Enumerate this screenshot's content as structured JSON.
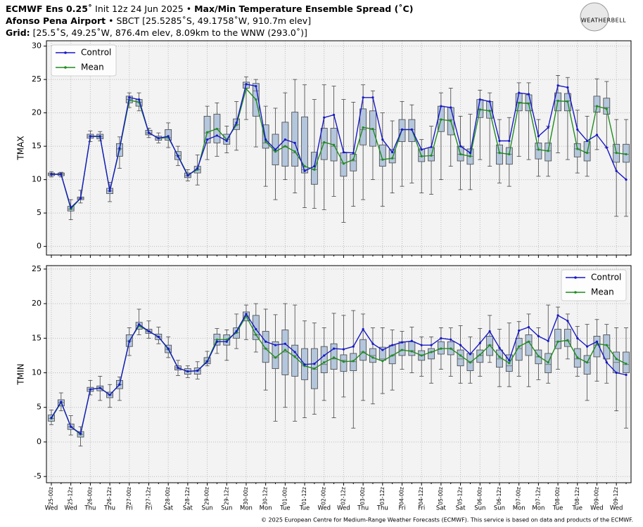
{
  "header": {
    "line1": [
      "ECMWF Ens 0.25˚",
      "Init 12z 24 Jun 2025 •",
      "Max/Min Temperature Ensemble Spread (˚C)"
    ],
    "line2": [
      "Afonso Pena Airport",
      "• SBCT [25.5285˚S, 49.1758˚W, 910.7m elev]"
    ],
    "line3": [
      "Grid:",
      "[25.5˚S, 49.25˚W, 876.4m elev, 8.09km to the WNW (293.0˚)]"
    ],
    "logo": "WEATHERBELL",
    "footer": "© 2025 European Centre for Medium-Range Weather Forecasts (ECMWF). This service is based on data and products of the ECMWF."
  },
  "chart_data": [
    {
      "type": "box",
      "ylabel": "TMAX",
      "ylim": [
        -1.3,
        30.8
      ],
      "yticks": [
        0,
        5,
        10,
        15,
        20,
        25,
        30
      ],
      "grid": true,
      "legend": "upper left",
      "box_color": "#b4c6dc",
      "series": [
        {
          "name": "Control",
          "color": "#1818c8",
          "values": [
            10.8,
            10.8,
            5.8,
            7.2,
            16.5,
            16.5,
            8.3,
            14.7,
            22.3,
            22.0,
            17.0,
            16.2,
            16.5,
            13.5,
            10.6,
            11.7,
            16.0,
            16.6,
            15.8,
            18.5,
            24.3,
            24.0,
            16.0,
            14.5,
            16.0,
            15.5,
            11.3,
            12.0,
            19.3,
            19.7,
            14.1,
            14.0,
            22.3,
            22.3,
            16.0,
            14.1,
            17.5,
            17.5,
            14.5,
            14.9,
            21.0,
            20.8,
            15.0,
            14.0,
            22.0,
            21.7,
            15.8,
            15.8,
            23.0,
            22.8,
            16.5,
            17.8,
            24.1,
            23.8,
            17.5,
            15.8,
            16.7,
            14.8,
            11.3,
            10.0
          ]
        },
        {
          "name": "Mean",
          "color": "#1f8c1f",
          "values": [
            10.8,
            10.8,
            5.6,
            7.2,
            16.5,
            16.4,
            8.3,
            14.5,
            21.9,
            21.6,
            17.0,
            16.2,
            16.3,
            13.6,
            10.7,
            11.5,
            17.1,
            17.6,
            16.0,
            18.2,
            23.6,
            22.0,
            15.7,
            14.2,
            15.0,
            14.2,
            12.0,
            11.5,
            15.6,
            15.2,
            12.4,
            13.0,
            17.8,
            17.6,
            13.0,
            13.2,
            17.5,
            17.5,
            13.5,
            13.6,
            19.0,
            18.8,
            13.8,
            13.5,
            20.5,
            20.3,
            14.0,
            13.8,
            21.5,
            21.4,
            14.5,
            14.3,
            21.8,
            21.7,
            14.6,
            14.0,
            21.0,
            20.6,
            14.0,
            13.8
          ]
        }
      ],
      "boxes": [
        [
          10.4,
          10.6,
          10.8,
          11.0,
          11.2
        ],
        [
          10.4,
          10.6,
          10.8,
          11.0,
          11.1
        ],
        [
          4.0,
          5.3,
          5.6,
          6.0,
          7.0
        ],
        [
          6.5,
          7.0,
          7.2,
          7.4,
          8.4
        ],
        [
          15.7,
          16.2,
          16.5,
          16.8,
          17.3
        ],
        [
          15.8,
          16.1,
          16.4,
          16.8,
          17.2
        ],
        [
          6.7,
          7.9,
          8.3,
          8.7,
          9.6
        ],
        [
          11.7,
          13.5,
          14.6,
          15.4,
          16.4
        ],
        [
          20.8,
          21.5,
          22.0,
          22.5,
          23.0
        ],
        [
          20.3,
          21.0,
          21.6,
          22.0,
          23.0
        ],
        [
          16.3,
          16.7,
          17.0,
          17.4,
          17.7
        ],
        [
          15.5,
          15.9,
          16.2,
          16.5,
          17.0
        ],
        [
          14.8,
          15.9,
          16.3,
          17.5,
          18.5
        ],
        [
          12.1,
          13.0,
          13.6,
          14.2,
          15.0
        ],
        [
          9.8,
          10.3,
          10.6,
          11.0,
          11.5
        ],
        [
          9.2,
          11.0,
          11.5,
          12.0,
          13.7
        ],
        [
          13.0,
          15.5,
          17.0,
          19.5,
          21.0
        ],
        [
          13.5,
          15.5,
          17.6,
          19.8,
          21.5
        ],
        [
          14.0,
          15.3,
          16.0,
          16.8,
          18.0
        ],
        [
          14.4,
          17.5,
          18.2,
          19.1,
          21.7
        ],
        [
          19.0,
          23.7,
          24.2,
          24.6,
          25.4
        ],
        [
          14.9,
          19.5,
          23.3,
          24.4,
          25.0
        ],
        [
          9.0,
          14.7,
          15.5,
          18.2,
          21.0
        ],
        [
          7.0,
          12.2,
          14.3,
          16.8,
          20.7
        ],
        [
          10.0,
          12.0,
          15.0,
          18.6,
          23.0
        ],
        [
          8.0,
          12.0,
          14.0,
          20.1,
          25.0
        ],
        [
          5.8,
          11.0,
          11.5,
          19.4,
          24.2
        ],
        [
          5.7,
          9.3,
          11.5,
          14.1,
          22.0
        ],
        [
          5.5,
          13.0,
          15.5,
          17.7,
          24.2
        ],
        [
          7.5,
          12.8,
          15.0,
          17.7,
          24.0
        ],
        [
          3.6,
          10.5,
          12.5,
          14.0,
          22.0
        ],
        [
          6.0,
          11.3,
          12.8,
          13.8,
          21.6
        ],
        [
          7.0,
          15.2,
          17.5,
          20.6,
          24.2
        ],
        [
          10.0,
          15.0,
          17.5,
          20.3,
          23.3
        ],
        [
          6.0,
          12.0,
          13.0,
          15.2,
          20.0
        ],
        [
          8.0,
          12.5,
          13.2,
          14.5,
          18.8
        ],
        [
          9.0,
          15.7,
          17.5,
          19.0,
          21.7
        ],
        [
          9.5,
          15.7,
          17.5,
          19.0,
          21.2
        ],
        [
          8.0,
          12.7,
          13.5,
          14.6,
          16.0
        ],
        [
          7.8,
          12.8,
          13.6,
          14.8,
          18.0
        ],
        [
          10.0,
          17.2,
          19.0,
          21.0,
          23.0
        ],
        [
          12.0,
          16.7,
          19.0,
          20.8,
          23.7
        ],
        [
          8.5,
          12.8,
          13.8,
          15.0,
          19.5
        ],
        [
          8.5,
          12.3,
          13.5,
          14.6,
          19.8
        ],
        [
          13.0,
          19.3,
          20.5,
          22.0,
          23.4
        ],
        [
          12.0,
          19.2,
          20.3,
          21.7,
          23.0
        ],
        [
          9.5,
          12.3,
          14.0,
          15.2,
          19.0
        ],
        [
          9.0,
          12.3,
          13.8,
          14.8,
          19.3
        ],
        [
          13.5,
          20.3,
          21.6,
          22.9,
          24.5
        ],
        [
          13.0,
          20.3,
          21.5,
          22.7,
          24.5
        ],
        [
          10.5,
          13.1,
          14.5,
          15.5,
          19.0
        ],
        [
          10.5,
          12.8,
          14.3,
          15.5,
          18.0
        ],
        [
          14.0,
          20.3,
          21.8,
          23.0,
          25.6
        ],
        [
          13.0,
          20.3,
          21.8,
          22.9,
          25.3
        ],
        [
          11.0,
          13.4,
          14.6,
          15.4,
          20.4
        ],
        [
          10.5,
          12.8,
          14.0,
          15.7,
          19.5
        ],
        [
          14.5,
          20.1,
          21.0,
          22.5,
          25.1
        ],
        [
          14.8,
          19.8,
          20.8,
          22.2,
          24.7
        ],
        [
          4.5,
          12.6,
          14.0,
          15.3,
          19.0
        ],
        [
          4.5,
          12.6,
          13.8,
          15.3,
          19.0
        ]
      ]
    },
    {
      "type": "box",
      "ylabel": "TMIN",
      "ylim": [
        -5.9,
        25.5
      ],
      "yticks": [
        -5,
        0,
        5,
        10,
        15,
        20,
        25
      ],
      "grid": true,
      "legend": "upper right",
      "box_color": "#b4c6dc",
      "categories": [
        "25-00z",
        null,
        "25-12z",
        null,
        "26-00z",
        null,
        "26-12z",
        null,
        "27-00z",
        null,
        "27-12z",
        null,
        "28-00z",
        null,
        "28-12z",
        null,
        "29-00z",
        null,
        "29-12z",
        null,
        "30-00z",
        null,
        "30-12z",
        null,
        "01-00z",
        null,
        "01-12z",
        null,
        "02-00z",
        null,
        "02-12z",
        null,
        "03-00z",
        null,
        "03-12z",
        null,
        "04-00z",
        null,
        "04-12z",
        null,
        "05-00z",
        null,
        "05-12z",
        null,
        "06-00z",
        null,
        "06-12z",
        null,
        "07-00z",
        null,
        "07-12z",
        null,
        "08-00z",
        null,
        "08-12z",
        null,
        "09-00z",
        null,
        "09-12z",
        null
      ],
      "day_labels": [
        "Wed",
        null,
        "Wed",
        null,
        "Thu",
        null,
        "Thu",
        null,
        "Fri",
        null,
        "Fri",
        null,
        "Sat",
        null,
        "Sat",
        null,
        "Sun",
        null,
        "Sun",
        null,
        "Mon",
        null,
        "Mon",
        null,
        "Tue",
        null,
        "Tue",
        null,
        "Wed",
        null,
        "Wed",
        null,
        "Thu",
        null,
        "Thu",
        null,
        "Fri",
        null,
        "Fri",
        null,
        "Sat",
        null,
        "Sat",
        null,
        "Sun",
        null,
        "Sun",
        null,
        "Mon",
        null,
        "Mon",
        null,
        "Tue",
        null,
        "Tue",
        null,
        "Wed",
        null,
        "Wed",
        null
      ],
      "series": [
        {
          "name": "Control",
          "color": "#1818c8",
          "values": [
            3.5,
            5.8,
            2.2,
            1.2,
            7.6,
            7.8,
            6.8,
            8.3,
            14.5,
            17.0,
            16.0,
            15.2,
            13.5,
            10.7,
            10.2,
            10.3,
            11.6,
            14.5,
            14.5,
            16.0,
            18.5,
            16.3,
            14.5,
            14.0,
            14.2,
            13.0,
            11.2,
            11.3,
            12.5,
            13.5,
            13.4,
            13.8,
            16.3,
            14.2,
            13.3,
            14.0,
            14.4,
            14.6,
            14.0,
            14.0,
            15.0,
            14.8,
            14.0,
            12.7,
            14.3,
            16.0,
            13.6,
            11.8,
            16.1,
            16.6,
            15.3,
            14.6,
            18.3,
            17.5,
            15.0,
            13.8,
            14.5,
            11.5,
            10.0,
            9.7
          ]
        },
        {
          "name": "Mean",
          "color": "#1f8c1f",
          "values": [
            3.4,
            5.7,
            2.2,
            1.1,
            7.6,
            7.8,
            6.8,
            8.3,
            14.6,
            16.8,
            16.0,
            15.2,
            13.4,
            10.7,
            10.2,
            10.3,
            11.7,
            14.8,
            14.8,
            15.8,
            18.2,
            15.5,
            13.5,
            12.2,
            13.3,
            12.3,
            11.0,
            10.6,
            11.5,
            12.2,
            11.6,
            11.7,
            13.0,
            12.2,
            11.7,
            12.5,
            13.3,
            13.1,
            12.5,
            13.0,
            13.5,
            13.5,
            12.5,
            11.5,
            12.6,
            14.0,
            12.3,
            11.4,
            13.8,
            14.5,
            12.4,
            11.5,
            14.5,
            14.7,
            12.2,
            11.5,
            14.2,
            14.0,
            12.0,
            11.3
          ]
        }
      ],
      "boxes": [
        [
          2.5,
          3.0,
          3.4,
          3.9,
          4.6
        ],
        [
          4.5,
          5.2,
          5.7,
          6.1,
          7.1
        ],
        [
          1.0,
          1.8,
          2.2,
          2.6,
          3.8
        ],
        [
          -0.6,
          0.7,
          1.1,
          1.5,
          2.2
        ],
        [
          6.8,
          7.3,
          7.6,
          7.9,
          8.9
        ],
        [
          6.0,
          7.4,
          7.8,
          8.1,
          9.5
        ],
        [
          5.0,
          6.4,
          6.8,
          7.2,
          8.3
        ],
        [
          6.0,
          7.7,
          8.3,
          8.9,
          9.4
        ],
        [
          12.5,
          13.8,
          14.6,
          15.5,
          16.5
        ],
        [
          15.5,
          16.3,
          16.8,
          17.3,
          19.2
        ],
        [
          15.0,
          15.7,
          16.0,
          16.3,
          17.5
        ],
        [
          14.2,
          14.8,
          15.2,
          15.6,
          16.6
        ],
        [
          12.2,
          12.9,
          13.4,
          14.0,
          15.2
        ],
        [
          9.6,
          10.4,
          10.7,
          11.0,
          11.8
        ],
        [
          9.3,
          9.8,
          10.2,
          10.6,
          11.0
        ],
        [
          9.1,
          9.8,
          10.3,
          10.7,
          11.6
        ],
        [
          11.0,
          11.3,
          11.7,
          12.2,
          13.1
        ],
        [
          12.8,
          14.0,
          14.8,
          15.6,
          16.4
        ],
        [
          11.8,
          14.0,
          14.8,
          15.5,
          16.2
        ],
        [
          13.5,
          15.0,
          15.8,
          16.5,
          18.5
        ],
        [
          14.8,
          17.5,
          18.2,
          18.8,
          19.8
        ],
        [
          13.0,
          14.8,
          15.5,
          18.3,
          20.0
        ],
        [
          7.5,
          11.5,
          13.5,
          16.0,
          19.2
        ],
        [
          3.0,
          10.6,
          12.2,
          14.5,
          18.4
        ],
        [
          5.0,
          9.7,
          13.0,
          16.2,
          20.0
        ],
        [
          3.0,
          9.5,
          12.5,
          14.0,
          19.8
        ],
        [
          3.5,
          9.0,
          11.0,
          13.5,
          17.5
        ],
        [
          4.0,
          7.7,
          10.5,
          13.5,
          17.2
        ],
        [
          6.0,
          10.0,
          11.2,
          13.8,
          16.5
        ],
        [
          3.5,
          10.5,
          12.0,
          14.2,
          18.6
        ],
        [
          6.5,
          10.2,
          11.8,
          12.6,
          18.3
        ],
        [
          2.0,
          10.3,
          11.6,
          12.8,
          19.0
        ],
        [
          6.0,
          11.8,
          13.0,
          14.8,
          18.5
        ],
        [
          5.5,
          11.5,
          12.5,
          13.5,
          16.5
        ],
        [
          7.0,
          11.8,
          12.0,
          13.7,
          16.5
        ],
        [
          7.5,
          11.3,
          12.5,
          14.0,
          16.2
        ],
        [
          10.5,
          12.5,
          13.3,
          14.5,
          16.0
        ],
        [
          10.0,
          12.5,
          13.2,
          14.5,
          16.6
        ],
        [
          9.5,
          11.8,
          12.5,
          13.2,
          15.2
        ],
        [
          8.5,
          12.0,
          13.0,
          13.5,
          15.2
        ],
        [
          10.5,
          12.7,
          13.5,
          14.5,
          16.5
        ],
        [
          9.5,
          12.6,
          13.5,
          14.5,
          16.5
        ],
        [
          8.5,
          11.0,
          12.0,
          13.3,
          16.8
        ],
        [
          8.5,
          10.3,
          11.5,
          12.8,
          15.2
        ],
        [
          9.5,
          11.5,
          12.5,
          13.3,
          16.4
        ],
        [
          11.5,
          12.5,
          14.0,
          15.3,
          18.3
        ],
        [
          8.0,
          10.8,
          12.0,
          13.3,
          16.3
        ],
        [
          8.0,
          10.2,
          11.0,
          12.6,
          17.2
        ],
        [
          9.5,
          11.8,
          13.5,
          15.0,
          17.4
        ],
        [
          8.0,
          12.5,
          14.5,
          15.5,
          18.5
        ],
        [
          9.0,
          11.3,
          12.3,
          13.3,
          16.5
        ],
        [
          8.5,
          10.0,
          11.2,
          12.8,
          19.8
        ],
        [
          10.5,
          13.5,
          14.5,
          16.3,
          19.5
        ],
        [
          12.0,
          13.8,
          14.6,
          16.3,
          18.5
        ],
        [
          9.5,
          10.8,
          12.0,
          13.5,
          16.7
        ],
        [
          6.0,
          9.8,
          11.5,
          12.5,
          17.0
        ],
        [
          8.8,
          12.3,
          14.0,
          15.3,
          17.7
        ],
        [
          8.5,
          12.0,
          14.0,
          15.5,
          17.0
        ],
        [
          4.5,
          10.0,
          11.5,
          13.0,
          16.5
        ],
        [
          2.0,
          10.0,
          11.2,
          13.0,
          16.5
        ]
      ]
    }
  ]
}
